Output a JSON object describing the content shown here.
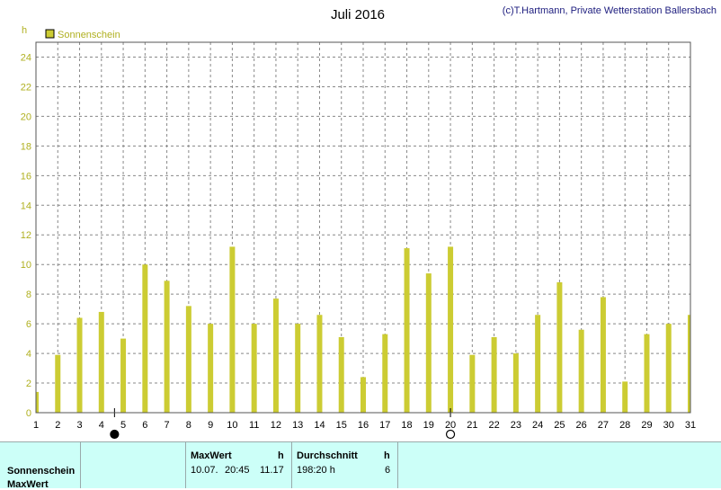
{
  "header": {
    "title": "Juli 2016",
    "copyright": "(c)T.Hartmann, Private Wetterstation Ballersbach"
  },
  "colors": {
    "series": "#cccc33",
    "axis_text": "#b0b020",
    "grid": "#888888",
    "footer_bg": "#ccfff8"
  },
  "chart_data": {
    "type": "bar",
    "unit": "h",
    "legend": "Sonnenschein",
    "legend_position": "top-left",
    "grid": true,
    "ylim": [
      0,
      25
    ],
    "yticks": [
      0,
      2,
      4,
      6,
      8,
      10,
      12,
      14,
      16,
      18,
      20,
      22,
      24
    ],
    "x": [
      1,
      2,
      3,
      4,
      5,
      6,
      7,
      8,
      9,
      10,
      11,
      12,
      13,
      14,
      15,
      16,
      17,
      18,
      19,
      20,
      21,
      22,
      23,
      24,
      25,
      26,
      27,
      28,
      29,
      30,
      31
    ],
    "series": [
      {
        "name": "Sonnenschein",
        "values": [
          1.4,
          3.9,
          6.4,
          6.8,
          5.0,
          10.0,
          8.9,
          7.2,
          6.0,
          11.2,
          6.0,
          7.7,
          6.0,
          6.6,
          5.1,
          2.4,
          5.3,
          11.1,
          9.4,
          11.2,
          3.9,
          5.1,
          4.0,
          6.6,
          8.8,
          5.6,
          7.8,
          2.1,
          5.3,
          6.0,
          6.6
        ]
      }
    ],
    "moon_markers": [
      {
        "day": 4.6,
        "phase": "new"
      },
      {
        "day": 20.0,
        "phase": "full"
      }
    ]
  },
  "footer": {
    "rows": [
      "Sonnenschein",
      "MaxWert"
    ],
    "maxwert": {
      "header": "MaxWert",
      "unit": "h",
      "date": "10.07.",
      "time": "20:45",
      "value": "11.17"
    },
    "durchschnitt": {
      "header": "Durchschnitt",
      "unit": "h",
      "total": "198:20 h",
      "value": "6"
    }
  }
}
